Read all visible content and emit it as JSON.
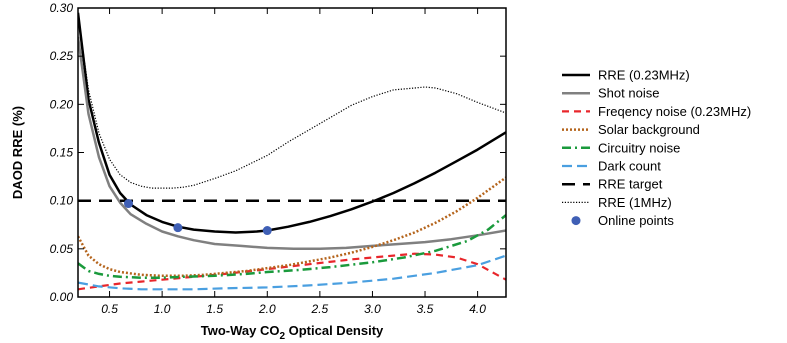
{
  "chart_data": {
    "type": "line",
    "title": "",
    "xlabel": "Two-Way CO2 Optical Density",
    "xlabel_parts": [
      "Two-Way CO",
      "2",
      " Optical Density"
    ],
    "ylabel": "DAOD RRE (%)",
    "xlim": [
      0.2,
      4.27
    ],
    "ylim": [
      0.0,
      0.3
    ],
    "x_ticks": [
      0.5,
      1.0,
      1.5,
      2.0,
      2.5,
      3.0,
      3.5,
      4.0
    ],
    "x_tick_labels": [
      "0.5",
      "1.0",
      "1.5",
      "2.0",
      "2.5",
      "3.0",
      "3.5",
      "4.0"
    ],
    "y_ticks": [
      0.0,
      0.05,
      0.1,
      0.15,
      0.2,
      0.25,
      0.3
    ],
    "y_tick_labels": [
      "0.00",
      "0.05",
      "0.10",
      "0.15",
      "0.20",
      "0.25",
      "0.30"
    ],
    "grid": false,
    "legend_position": "right-outside",
    "series": [
      {
        "name": "RRE (0.23MHz)",
        "color": "#000000",
        "style": "solid",
        "width": 2.5,
        "x": [
          0.2,
          0.3,
          0.4,
          0.5,
          0.6,
          0.7,
          0.85,
          1.0,
          1.15,
          1.3,
          1.5,
          1.7,
          1.9,
          2.0,
          2.2,
          2.4,
          2.6,
          2.8,
          3.0,
          3.2,
          3.4,
          3.6,
          3.8,
          4.0,
          4.27
        ],
        "y": [
          0.295,
          0.205,
          0.16,
          0.127,
          0.108,
          0.096,
          0.085,
          0.078,
          0.073,
          0.07,
          0.068,
          0.067,
          0.068,
          0.069,
          0.073,
          0.078,
          0.084,
          0.091,
          0.099,
          0.108,
          0.118,
          0.129,
          0.141,
          0.153,
          0.171
        ]
      },
      {
        "name": "Shot noise",
        "color": "#808080",
        "style": "solid",
        "width": 2.5,
        "x": [
          0.2,
          0.3,
          0.4,
          0.5,
          0.6,
          0.7,
          0.85,
          1.0,
          1.15,
          1.3,
          1.5,
          1.75,
          2.0,
          2.25,
          2.5,
          2.75,
          3.0,
          3.25,
          3.5,
          3.75,
          4.0,
          4.27
        ],
        "y": [
          0.27,
          0.19,
          0.145,
          0.115,
          0.098,
          0.086,
          0.076,
          0.068,
          0.063,
          0.059,
          0.055,
          0.053,
          0.051,
          0.05,
          0.05,
          0.051,
          0.053,
          0.055,
          0.057,
          0.06,
          0.064,
          0.069
        ]
      },
      {
        "name": "Freqency noise (0.23MHz)",
        "color": "#e8262b",
        "style": "dash",
        "width": 2.2,
        "x": [
          0.2,
          0.4,
          0.6,
          0.8,
          1.0,
          1.3,
          1.6,
          2.0,
          2.4,
          2.8,
          3.0,
          3.2,
          3.4,
          3.6,
          3.8,
          4.0,
          4.27
        ],
        "y": [
          0.008,
          0.011,
          0.014,
          0.016,
          0.018,
          0.021,
          0.024,
          0.029,
          0.034,
          0.039,
          0.041,
          0.043,
          0.045,
          0.044,
          0.041,
          0.034,
          0.018
        ]
      },
      {
        "name": "Solar background",
        "color": "#b5651d",
        "style": "dot",
        "width": 2.5,
        "x": [
          0.2,
          0.3,
          0.4,
          0.5,
          0.6,
          0.8,
          1.0,
          1.2,
          1.4,
          1.6,
          1.8,
          2.0,
          2.2,
          2.4,
          2.6,
          2.8,
          3.0,
          3.2,
          3.4,
          3.6,
          3.8,
          4.0,
          4.27
        ],
        "y": [
          0.063,
          0.043,
          0.034,
          0.029,
          0.026,
          0.023,
          0.022,
          0.022,
          0.023,
          0.025,
          0.027,
          0.03,
          0.033,
          0.037,
          0.041,
          0.046,
          0.052,
          0.059,
          0.067,
          0.077,
          0.089,
          0.103,
          0.124
        ]
      },
      {
        "name": "Circuitry noise",
        "color": "#1a9a3c",
        "style": "dashdot",
        "width": 2.5,
        "x": [
          0.2,
          0.3,
          0.4,
          0.5,
          0.6,
          0.8,
          1.0,
          1.2,
          1.5,
          1.8,
          2.0,
          2.3,
          2.6,
          3.0,
          3.3,
          3.6,
          3.9,
          4.1,
          4.27
        ],
        "y": [
          0.035,
          0.027,
          0.024,
          0.022,
          0.021,
          0.02,
          0.02,
          0.021,
          0.022,
          0.024,
          0.026,
          0.028,
          0.031,
          0.036,
          0.041,
          0.048,
          0.058,
          0.07,
          0.085
        ]
      },
      {
        "name": "Dark count",
        "color": "#4a9fe0",
        "style": "longdash",
        "width": 2.2,
        "x": [
          0.2,
          0.4,
          0.6,
          0.8,
          1.0,
          1.3,
          1.6,
          2.0,
          2.4,
          2.8,
          3.2,
          3.6,
          4.0,
          4.27
        ],
        "y": [
          0.015,
          0.011,
          0.009,
          0.008,
          0.008,
          0.008,
          0.009,
          0.01,
          0.012,
          0.015,
          0.019,
          0.025,
          0.033,
          0.043
        ]
      },
      {
        "name": "RRE target",
        "color": "#000000",
        "style": "bigdash",
        "width": 2.5,
        "x": [
          0.2,
          4.27
        ],
        "y": [
          0.1,
          0.1
        ]
      },
      {
        "name": "RRE (1MHz)",
        "color": "#000000",
        "style": "finedot",
        "width": 1.2,
        "x": [
          0.2,
          0.3,
          0.4,
          0.5,
          0.6,
          0.7,
          0.8,
          0.9,
          1.0,
          1.1,
          1.2,
          1.3,
          1.5,
          1.7,
          2.0,
          2.2,
          2.5,
          2.8,
          3.0,
          3.2,
          3.4,
          3.5,
          3.6,
          3.8,
          4.0,
          4.27
        ],
        "y": [
          0.292,
          0.215,
          0.17,
          0.143,
          0.127,
          0.119,
          0.115,
          0.113,
          0.113,
          0.113,
          0.114,
          0.116,
          0.123,
          0.131,
          0.147,
          0.161,
          0.18,
          0.199,
          0.208,
          0.215,
          0.217,
          0.218,
          0.217,
          0.211,
          0.202,
          0.191
        ]
      }
    ],
    "points": {
      "name": "Online points",
      "color": "#3f5fb5",
      "x": [
        0.68,
        1.15,
        2.0
      ],
      "y": [
        0.097,
        0.072,
        0.069
      ]
    }
  }
}
